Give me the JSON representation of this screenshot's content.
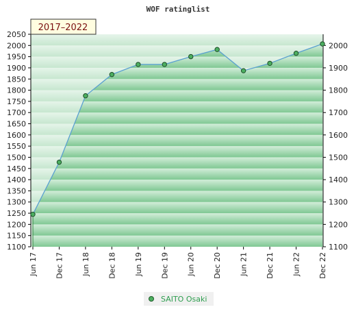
{
  "chart_data": {
    "type": "area",
    "title": "WOF ratinglist",
    "period_label": "2017–2022",
    "x": [
      "Jun 17",
      "Dec 17",
      "Jun 18",
      "Dec 18",
      "Jun 19",
      "Dec 19",
      "Jun 20",
      "Dec 20",
      "Jun 21",
      "Dec 21",
      "Jun 22",
      "Dec 22"
    ],
    "series": [
      {
        "name": "SAITO Osaki",
        "values": [
          1245,
          1478,
          1775,
          1870,
          1915,
          1915,
          1950,
          1982,
          1887,
          1920,
          1965,
          2007
        ]
      }
    ],
    "ylim_left": [
      1100,
      2050
    ],
    "yticks_left": [
      1100,
      1150,
      1200,
      1250,
      1300,
      1350,
      1400,
      1450,
      1500,
      1550,
      1600,
      1650,
      1700,
      1750,
      1800,
      1850,
      1900,
      1950,
      2000,
      2050
    ],
    "yticks_right": [
      1100,
      1200,
      1300,
      1400,
      1500,
      1600,
      1700,
      1800,
      1900,
      2000
    ],
    "legend_position": "bottom-center",
    "grid": false,
    "colors": {
      "line": "#5aa0d0",
      "marker": "#4caf60",
      "area_dark": "#7cc690",
      "area_light": "#e6f4ea",
      "legend_text": "#2e9e4f"
    }
  }
}
